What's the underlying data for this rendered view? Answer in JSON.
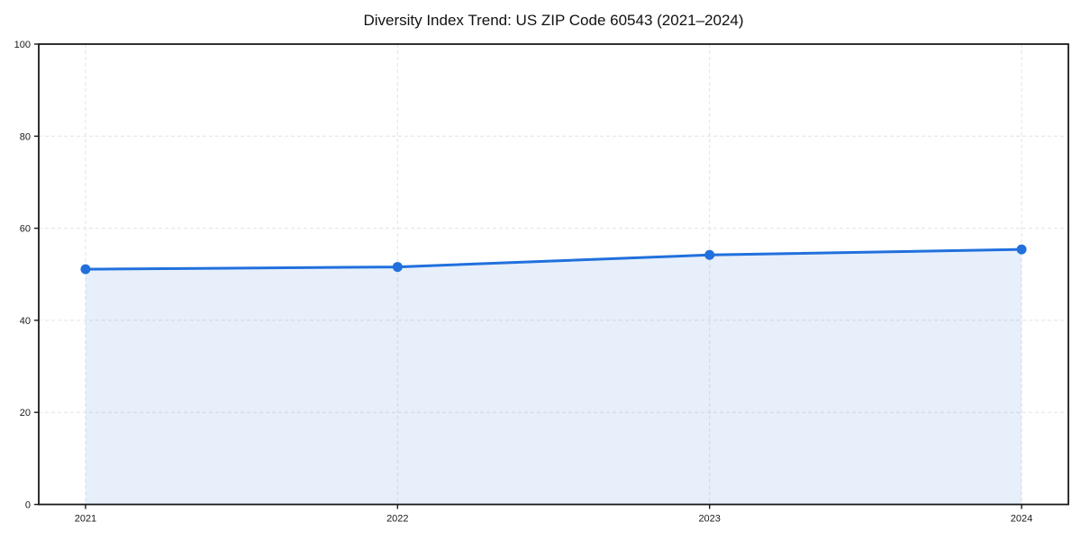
{
  "chart_data": {
    "type": "line",
    "title": "Diversity Index Trend: US ZIP Code 60543 (2021–2024)",
    "x": [
      2021,
      2022,
      2023,
      2024
    ],
    "x_tick_labels": [
      "2021",
      "2022",
      "2023",
      "2024"
    ],
    "series": [
      {
        "name": "Diversity Index",
        "values": [
          51.1,
          51.6,
          54.2,
          55.4
        ]
      }
    ],
    "xlabel": "",
    "ylabel": "",
    "ylim": [
      0,
      100
    ],
    "yticks": [
      0,
      20,
      40,
      60,
      80,
      100
    ],
    "grid": true,
    "grid_style": "dashed",
    "legend_position": "none",
    "area_fill": true,
    "colors": {
      "line": "#2170dd",
      "marker": "#2170dd",
      "fill": "#2170dd",
      "fill_opacity": 0.11,
      "grid": "#e2e2e2",
      "spine": "#1a1a1a",
      "tick_label": "#1a1a1a",
      "title": "#111111",
      "background": "#ffffff"
    }
  }
}
